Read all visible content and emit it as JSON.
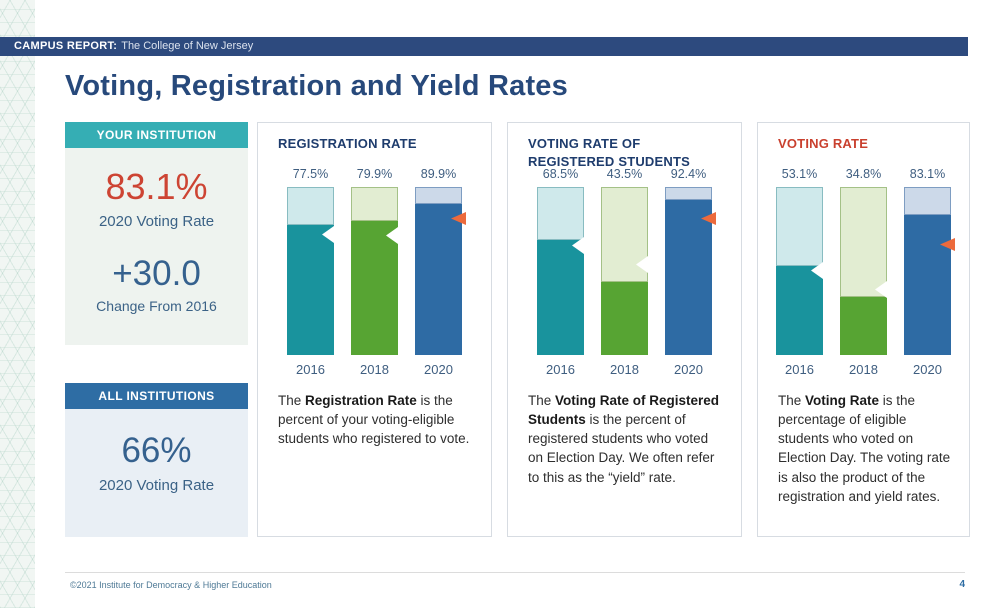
{
  "topbar": {
    "label_bold": "CAMPUS REPORT:",
    "label_rest": "The College of New Jersey"
  },
  "page_title": "Voting, Registration and Yield Rates",
  "sidebar": {
    "your_institution": {
      "header": "YOUR INSTITUTION",
      "value": "83.1%",
      "value_label": "2020 Voting Rate",
      "change": "+30.0",
      "change_label": "Change From 2016"
    },
    "all_institutions": {
      "header": "ALL INSTITUTIONS",
      "value": "66%",
      "value_label": "2020 Voting Rate"
    }
  },
  "colors": {
    "navy_bar": "#2d4a7e",
    "title_navy": "#27497b",
    "panel_title_navy": "#1e3c6d",
    "panel_title_red": "#c9402e",
    "teal_header": "#35aeb4",
    "blue_header": "#2e6da4",
    "accent_red": "#cd4433",
    "avg_arrow_orange": "#ec6a3c",
    "avg_notch_white": "#ffffff"
  },
  "chart_data": [
    {
      "type": "bar",
      "title_lines": [
        "REGISTRATION RATE"
      ],
      "title_color": "#1e3c6d",
      "categories": [
        "2016",
        "2018",
        "2020"
      ],
      "values": [
        77.5,
        79.9,
        89.9
      ],
      "value_labels": [
        "77.5%",
        "79.9%",
        "89.9%"
      ],
      "ylim": [
        0,
        100
      ],
      "avg_markers": [
        {
          "value": 72,
          "style": "notch"
        },
        {
          "value": 71,
          "style": "notch"
        },
        {
          "value": 81,
          "style": "arrow"
        }
      ],
      "bar_fill": [
        "#19939d",
        "#57a433",
        "#2e6ba4"
      ],
      "bar_light": [
        "#cfe9eb",
        "#e2edd2",
        "#ccd9e9"
      ],
      "bar_border": [
        "#88bcc1",
        "#a4c187",
        "#7e9dc2"
      ],
      "description_parts": [
        {
          "b": false,
          "t": "The "
        },
        {
          "b": true,
          "t": "Registration Rate"
        },
        {
          "b": false,
          "t": " is the percent of your voting-eligible students who registered to vote."
        }
      ]
    },
    {
      "type": "bar",
      "title_lines": [
        "VOTING RATE OF",
        "REGISTERED STUDENTS"
      ],
      "title_color": "#1e3c6d",
      "categories": [
        "2016",
        "2018",
        "2020"
      ],
      "values": [
        68.5,
        43.5,
        92.4
      ],
      "value_labels": [
        "68.5%",
        "43.5%",
        "92.4%"
      ],
      "ylim": [
        0,
        100
      ],
      "avg_markers": [
        {
          "value": 65,
          "style": "notch"
        },
        {
          "value": 54,
          "style": "notch"
        },
        {
          "value": 81,
          "style": "arrow"
        }
      ],
      "bar_fill": [
        "#19939d",
        "#57a433",
        "#2e6ba4"
      ],
      "bar_light": [
        "#cfe9eb",
        "#e2edd2",
        "#ccd9e9"
      ],
      "bar_border": [
        "#88bcc1",
        "#a4c187",
        "#7e9dc2"
      ],
      "description_parts": [
        {
          "b": false,
          "t": "The "
        },
        {
          "b": true,
          "t": "Voting Rate of Registered Students"
        },
        {
          "b": false,
          "t": " is the percent of registered students who voted on Election Day. We often refer to this as the “yield” rate."
        }
      ]
    },
    {
      "type": "bar",
      "title_lines": [
        "VOTING RATE"
      ],
      "title_color": "#c9402e",
      "categories": [
        "2016",
        "2018",
        "2020"
      ],
      "values": [
        53.1,
        34.8,
        83.1
      ],
      "value_labels": [
        "53.1%",
        "34.8%",
        "83.1%"
      ],
      "ylim": [
        0,
        100
      ],
      "avg_markers": [
        {
          "value": 50,
          "style": "notch"
        },
        {
          "value": 39,
          "style": "notch"
        },
        {
          "value": 66,
          "style": "arrow"
        }
      ],
      "bar_fill": [
        "#19939d",
        "#57a433",
        "#2e6ba4"
      ],
      "bar_light": [
        "#cfe9eb",
        "#e2edd2",
        "#ccd9e9"
      ],
      "bar_border": [
        "#88bcc1",
        "#a4c187",
        "#7e9dc2"
      ],
      "description_parts": [
        {
          "b": false,
          "t": "The "
        },
        {
          "b": true,
          "t": "Voting Rate"
        },
        {
          "b": false,
          "t": " is the percentage of eligible students who voted on Election Day. The voting rate is also the product of the registration and yield rates."
        }
      ]
    }
  ],
  "footer": {
    "copyright": "©2021 Institute for Democracy & Higher Education",
    "page_number": "4"
  }
}
